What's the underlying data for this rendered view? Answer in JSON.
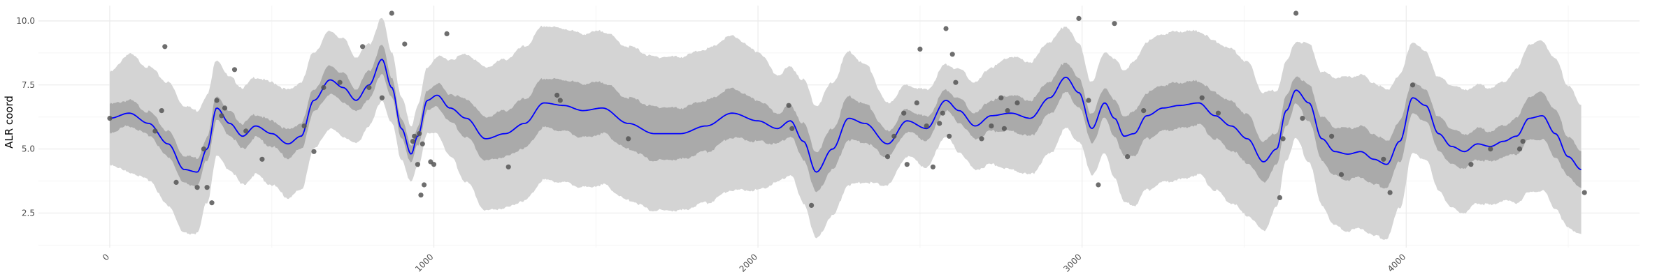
{
  "chart_data": {
    "type": "line",
    "title": "",
    "xlabel": "",
    "ylabel": "ALR coord",
    "xlim": [
      -220,
      4720
    ],
    "ylim": [
      1.15,
      10.6
    ],
    "x_ticks": [
      0,
      1000,
      2000,
      3000,
      4000
    ],
    "x_tick_labels": [
      "0",
      "1000",
      "2000",
      "3000",
      "4000"
    ],
    "y_ticks": [
      2.5,
      5.0,
      7.5,
      10.0
    ],
    "y_tick_labels": [
      "2.5",
      "5.0",
      "7.5",
      "10.0"
    ],
    "grid": true,
    "legend": "none",
    "colors": {
      "mean_line": "#0000ff",
      "inner_band": "#aaaaaa",
      "outer_band": "#d4d4d4",
      "points": "#555555",
      "grid_major": "#ebebeb",
      "grid_minor": "#f5f5f5"
    },
    "mean_curve": {
      "x": [
        0,
        60,
        120,
        180,
        230,
        270,
        300,
        330,
        370,
        410,
        450,
        500,
        550,
        590,
        630,
        680,
        720,
        760,
        800,
        840,
        870,
        900,
        930,
        950,
        980,
        1010,
        1050,
        1100,
        1160,
        1220,
        1280,
        1340,
        1400,
        1460,
        1520,
        1600,
        1680,
        1760,
        1840,
        1920,
        2000,
        2060,
        2100,
        2140,
        2180,
        2230,
        2280,
        2330,
        2400,
        2460,
        2520,
        2580,
        2620,
        2670,
        2720,
        2780,
        2840,
        2900,
        2950,
        2990,
        3030,
        3070,
        3100,
        3130,
        3160,
        3200,
        3250,
        3300,
        3360,
        3410,
        3460,
        3510,
        3560,
        3600,
        3630,
        3660,
        3700,
        3740,
        3780,
        3820,
        3860,
        3900,
        3940,
        3980,
        4020,
        4060,
        4100,
        4140,
        4180,
        4220,
        4260,
        4300,
        4340,
        4380,
        4420,
        4460,
        4500,
        4540
      ],
      "y": [
        6.2,
        6.4,
        6.0,
        5.2,
        4.2,
        4.1,
        5.0,
        6.6,
        6.0,
        5.5,
        5.9,
        5.6,
        5.2,
        5.5,
        6.9,
        7.7,
        7.4,
        6.9,
        7.5,
        8.5,
        7.4,
        5.8,
        4.8,
        5.5,
        6.9,
        7.1,
        6.6,
        6.2,
        5.4,
        5.6,
        6.0,
        6.8,
        6.7,
        6.5,
        6.6,
        6.0,
        5.6,
        5.6,
        5.9,
        6.4,
        6.1,
        5.8,
        6.1,
        5.3,
        4.1,
        5.0,
        6.2,
        6.0,
        5.2,
        6.1,
        5.8,
        6.9,
        6.5,
        5.9,
        6.3,
        6.4,
        6.2,
        7.0,
        7.8,
        7.2,
        5.8,
        6.8,
        6.2,
        5.5,
        5.6,
        6.3,
        6.6,
        6.7,
        6.8,
        6.3,
        5.9,
        5.4,
        4.5,
        5.0,
        6.5,
        7.3,
        6.8,
        5.4,
        4.9,
        4.8,
        4.9,
        4.6,
        4.4,
        5.3,
        7.0,
        6.7,
        5.6,
        5.1,
        4.9,
        5.2,
        5.1,
        5.3,
        5.5,
        6.2,
        6.3,
        5.6,
        4.7,
        4.2
      ]
    },
    "inner_band_halfwidth": [
      0.55,
      0.5,
      0.45,
      0.5,
      0.55,
      0.55,
      0.45,
      0.5,
      0.45,
      0.5,
      0.45,
      0.5,
      0.55,
      0.5,
      0.45,
      0.55,
      0.55,
      0.45,
      0.55,
      0.55,
      0.4,
      0.35,
      0.35,
      0.35,
      0.4,
      0.45,
      0.55,
      0.75,
      0.85,
      0.9,
      0.95,
      0.95,
      1.0,
      1.05,
      1.0,
      1.0,
      1.05,
      1.0,
      1.0,
      0.95,
      0.8,
      0.6,
      0.6,
      0.7,
      0.8,
      0.8,
      0.85,
      0.75,
      0.5,
      0.45,
      0.45,
      0.4,
      0.45,
      0.5,
      0.6,
      0.7,
      0.7,
      0.65,
      0.6,
      0.55,
      0.55,
      0.6,
      0.7,
      0.8,
      0.85,
      0.9,
      0.9,
      0.9,
      0.85,
      0.9,
      0.95,
      0.95,
      0.8,
      0.65,
      0.55,
      0.55,
      0.7,
      0.85,
      0.95,
      1.0,
      1.0,
      1.0,
      0.9,
      0.8,
      0.65,
      0.6,
      0.65,
      0.7,
      0.65,
      0.6,
      0.6,
      0.6,
      0.7,
      0.85,
      0.9,
      0.9,
      0.8,
      0.7
    ],
    "outer_band_halfwidth": [
      1.8,
      2.3,
      2.2,
      2.4,
      2.5,
      2.4,
      2.1,
      1.9,
      1.8,
      1.9,
      1.9,
      2.0,
      2.1,
      2.1,
      1.9,
      1.9,
      1.9,
      1.7,
      1.6,
      1.6,
      1.4,
      1.2,
      1.1,
      1.2,
      1.3,
      1.5,
      1.9,
      2.5,
      2.8,
      2.9,
      3.0,
      3.0,
      3.0,
      3.0,
      3.0,
      3.0,
      3.0,
      3.0,
      3.0,
      3.0,
      2.7,
      2.1,
      2.1,
      2.4,
      2.6,
      2.6,
      2.6,
      2.3,
      1.6,
      1.4,
      1.5,
      1.4,
      1.6,
      1.7,
      1.9,
      2.2,
      2.2,
      2.2,
      2.0,
      1.9,
      1.8,
      2.0,
      2.3,
      2.6,
      2.8,
      2.9,
      2.9,
      2.9,
      2.8,
      2.9,
      3.0,
      3.0,
      2.7,
      2.3,
      1.9,
      1.9,
      2.3,
      2.6,
      2.9,
      3.0,
      3.0,
      3.0,
      2.9,
      2.6,
      2.2,
      2.1,
      2.2,
      2.4,
      2.4,
      2.3,
      2.3,
      2.3,
      2.6,
      2.9,
      2.9,
      2.9,
      2.8,
      2.5
    ],
    "points": {
      "x": [
        0,
        140,
        160,
        170,
        205,
        270,
        290,
        300,
        315,
        330,
        345,
        355,
        385,
        420,
        470,
        600,
        630,
        660,
        710,
        780,
        800,
        840,
        870,
        910,
        935,
        940,
        950,
        955,
        960,
        965,
        970,
        990,
        1000,
        1040,
        1230,
        1380,
        1390,
        1600,
        2095,
        2105,
        2165,
        2400,
        2420,
        2450,
        2460,
        2490,
        2500,
        2520,
        2540,
        2560,
        2570,
        2580,
        2590,
        2600,
        2610,
        2690,
        2720,
        2750,
        2760,
        2770,
        2800,
        2990,
        3020,
        3050,
        3100,
        3140,
        3190,
        3370,
        3420,
        3610,
        3620,
        3660,
        3680,
        3770,
        3800,
        3930,
        3950,
        4020,
        4200,
        4260,
        4350,
        4360,
        4550
      ],
      "y": [
        6.2,
        5.7,
        6.5,
        9.0,
        3.7,
        3.5,
        5.0,
        3.5,
        2.9,
        6.9,
        6.3,
        6.6,
        8.1,
        5.7,
        4.6,
        5.9,
        4.9,
        7.4,
        7.6,
        9.0,
        7.4,
        7.0,
        10.3,
        9.1,
        5.3,
        5.5,
        4.4,
        5.6,
        3.2,
        5.2,
        3.6,
        4.5,
        4.4,
        9.5,
        4.3,
        7.1,
        6.9,
        5.4,
        6.7,
        5.8,
        2.8,
        4.7,
        5.5,
        6.4,
        4.4,
        6.8,
        8.9,
        5.9,
        4.3,
        6.0,
        6.4,
        9.7,
        5.5,
        8.7,
        7.6,
        5.4,
        5.9,
        7.0,
        5.8,
        6.5,
        6.8,
        10.1,
        6.9,
        3.6,
        9.9,
        4.7,
        6.5,
        7.0,
        6.4,
        3.1,
        5.4,
        10.3,
        6.2,
        5.5,
        4.0,
        4.6,
        3.3,
        7.5,
        4.4,
        5.0,
        5.0,
        5.3,
        3.3
      ]
    }
  }
}
